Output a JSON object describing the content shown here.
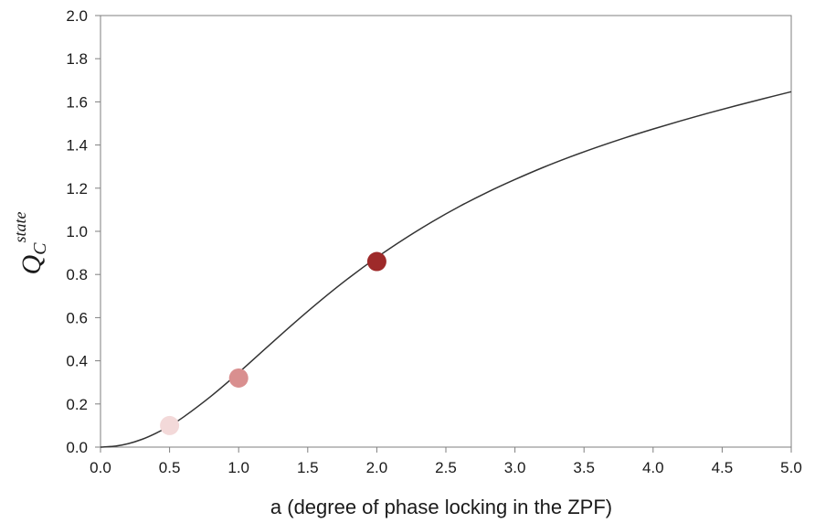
{
  "chart_data": {
    "type": "line",
    "title": "",
    "xlabel": "a (degree of phase locking in the ZPF)",
    "ylabel": {
      "main": "Q",
      "sub": "C",
      "sup": "state"
    },
    "xlim": [
      0,
      5
    ],
    "ylim": [
      0,
      2
    ],
    "x_ticks": [
      "0.0",
      "0.5",
      "1.0",
      "1.5",
      "2.0",
      "2.5",
      "3.0",
      "3.5",
      "4.0",
      "4.5",
      "5.0"
    ],
    "y_ticks": [
      "0.0",
      "0.2",
      "0.4",
      "0.6",
      "0.8",
      "1.0",
      "1.2",
      "1.4",
      "1.6",
      "1.8",
      "2.0"
    ],
    "grid": false,
    "series": [
      {
        "kind": "curve",
        "color": "#333333",
        "x": [
          0.0,
          0.1,
          0.2,
          0.3,
          0.4,
          0.5,
          0.6,
          0.8,
          1.0,
          1.2,
          1.4,
          1.6,
          1.8,
          2.0,
          2.2,
          2.4,
          2.6,
          2.8,
          3.0,
          3.2,
          3.4,
          3.6,
          3.8,
          4.0,
          4.2,
          4.4,
          4.6,
          4.8,
          5.0
        ],
        "y": [
          0.0,
          0.004,
          0.016,
          0.036,
          0.064,
          0.098,
          0.139,
          0.236,
          0.345,
          0.46,
          0.574,
          0.683,
          0.785,
          0.879,
          0.965,
          1.044,
          1.116,
          1.181,
          1.24,
          1.295,
          1.345,
          1.391,
          1.434,
          1.474,
          1.512,
          1.548,
          1.582,
          1.615,
          1.647
        ]
      }
    ],
    "markers": [
      {
        "x": 0.5,
        "y": 0.1,
        "color": "#f3d9d9"
      },
      {
        "x": 1.0,
        "y": 0.32,
        "color": "#d98f8f"
      },
      {
        "x": 2.0,
        "y": 0.86,
        "color": "#9e2a2a"
      }
    ]
  }
}
